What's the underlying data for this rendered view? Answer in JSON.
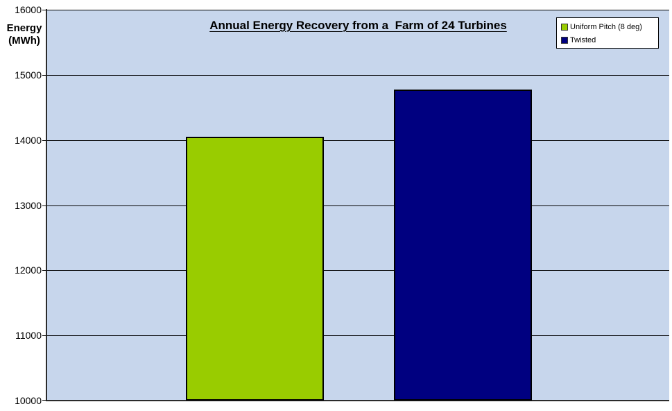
{
  "chart": {
    "title": "Annual Energy Recovery from a  Farm of 24 Turbines",
    "y_axis_title": "Energy\n(MWh)"
  },
  "chart_data": {
    "type": "bar",
    "title": "Annual Energy Recovery from a  Farm of 24 Turbines",
    "xlabel": "",
    "ylabel": "Energy (MWh)",
    "ylim": [
      10000,
      16000
    ],
    "ytick_step": 1000,
    "yticks": [
      16000,
      15000,
      14000,
      13000,
      12000,
      11000,
      10000
    ],
    "grid": true,
    "legend_position": "top-right",
    "categories": [
      "Uniform Pitch (8 deg)",
      "Twisted"
    ],
    "series": [
      {
        "name": "Uniform Pitch (8 deg)",
        "value": 14050,
        "color": "#99CC00"
      },
      {
        "name": "Twisted",
        "value": 14775,
        "color": "#000080"
      }
    ],
    "colors": {
      "plot_background": "#C7D6EC",
      "canvas_background": "#FFFFFF",
      "gridline": "#000000",
      "axis": "#2B2B2B",
      "text": "#000000"
    }
  }
}
